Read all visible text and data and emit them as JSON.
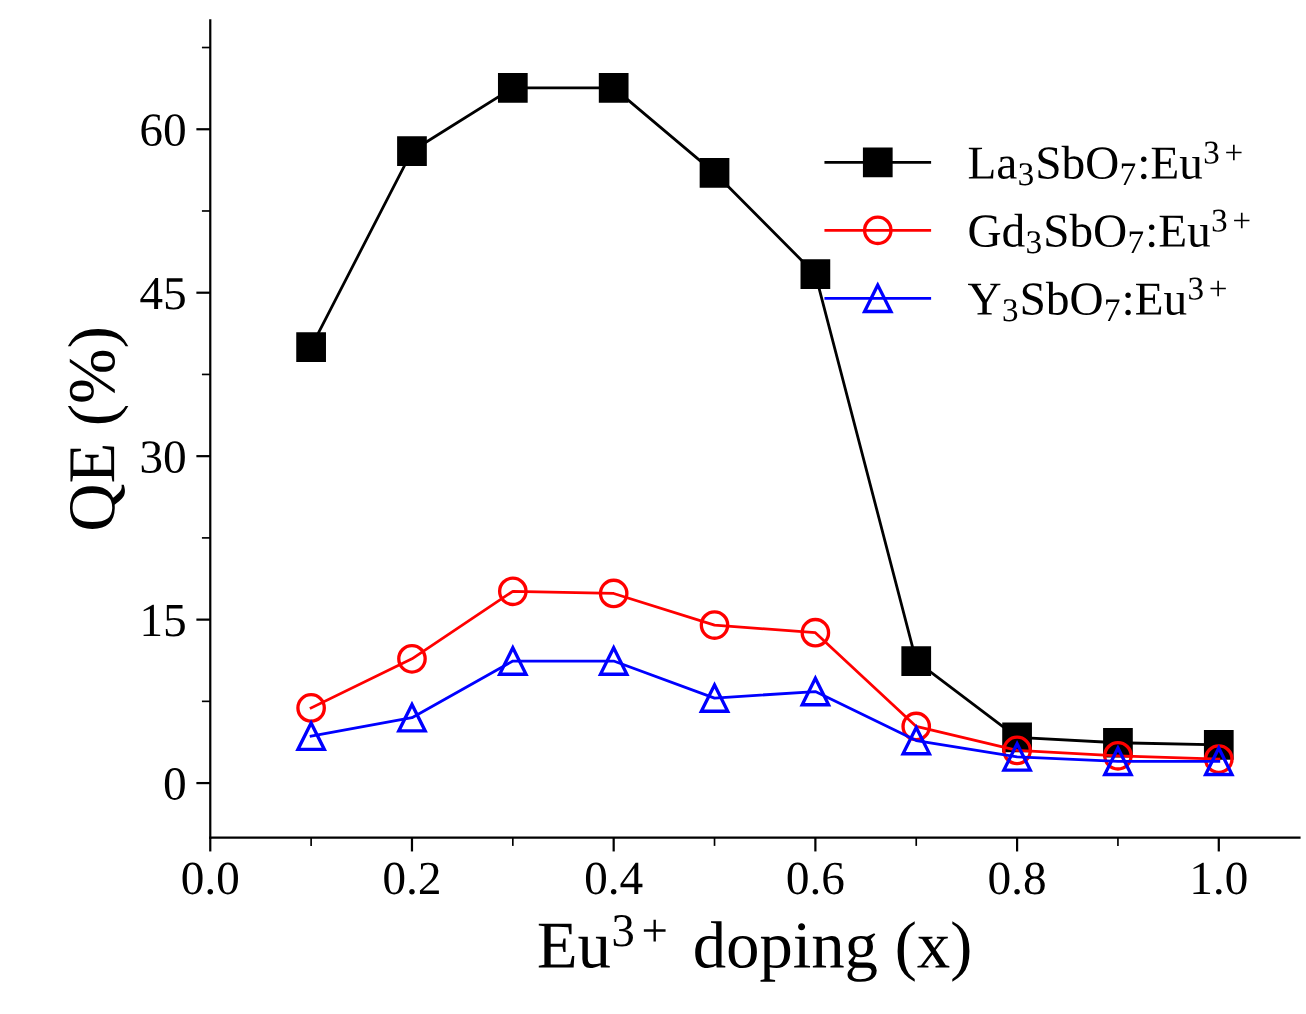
{
  "chart_data": {
    "type": "line",
    "xlabel": "Eu$^{3+}$ doping (x)",
    "ylabel": "QE (%)",
    "x": [
      0.1,
      0.2,
      0.3,
      0.4,
      0.5,
      0.6,
      0.7,
      0.8,
      0.9,
      1.0
    ],
    "series": [
      {
        "name": "La$_{3}$SbO$_{7}$:Eu$^{3+}$",
        "color": "#000000",
        "marker": "square",
        "values": [
          40,
          58,
          63.8,
          63.8,
          56,
          46.7,
          11.2,
          4.2,
          3.7,
          3.5
        ]
      },
      {
        "name": "Gd$_{3}$SbO$_{7}$:Eu$^{3+}$",
        "color": "#ff0000",
        "marker": "circle",
        "values": [
          6.9,
          11.4,
          17.6,
          17.4,
          14.5,
          13.8,
          5.2,
          3.0,
          2.5,
          2.2
        ]
      },
      {
        "name": "Y$_{3}$SbO$_{7}$:Eu$^{3+}$",
        "color": "#0000ff",
        "marker": "triangle",
        "values": [
          4.3,
          6.0,
          11.2,
          11.2,
          7.8,
          8.4,
          3.9,
          2.4,
          2.0,
          2.0
        ]
      }
    ],
    "xlim": [
      0.0,
      1.08
    ],
    "ylim": [
      -5,
      70
    ],
    "xticks": [
      {
        "value": 0.0,
        "label": "0.0"
      },
      {
        "value": 0.1,
        "label": null
      },
      {
        "value": 0.2,
        "label": "0.2"
      },
      {
        "value": 0.3,
        "label": null
      },
      {
        "value": 0.4,
        "label": "0.4"
      },
      {
        "value": 0.5,
        "label": null
      },
      {
        "value": 0.6,
        "label": "0.6"
      },
      {
        "value": 0.7,
        "label": null
      },
      {
        "value": 0.8,
        "label": "0.8"
      },
      {
        "value": 0.9,
        "label": null
      },
      {
        "value": 1.0,
        "label": "1.0"
      }
    ],
    "yticks": [
      0,
      {
        "value": 7.5,
        "label": null
      },
      15,
      {
        "value": 22.5,
        "label": null
      },
      30,
      {
        "value": 37.5,
        "label": null
      },
      45,
      {
        "value": 52.5,
        "label": null
      },
      60,
      {
        "value": 67.5,
        "label": null
      }
    ],
    "grid": false,
    "legend": "top right",
    "line_style": "solid"
  }
}
